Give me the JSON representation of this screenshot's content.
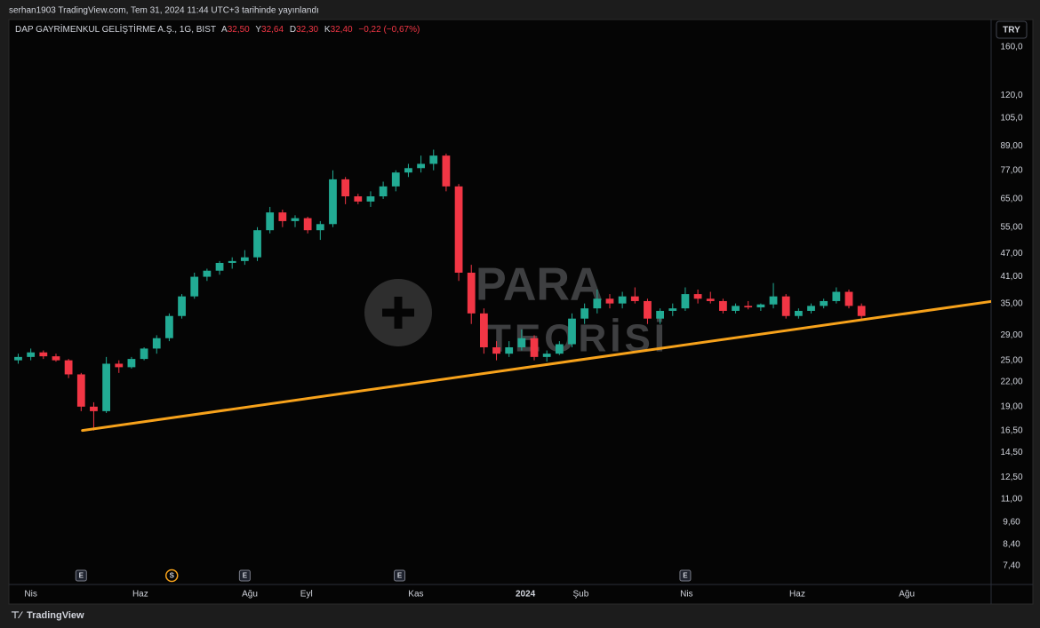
{
  "header": {
    "publisher": "serhan1903 TradingView.com, Tem 31, 2024 11:44 UTC+3 tarihinde yayınlandı"
  },
  "footer": {
    "brand": "TradingView"
  },
  "watermark": {
    "line1": "PARA",
    "line2": "TEORİSİ"
  },
  "chart_data": {
    "type": "candlestick",
    "title": "DAP GAYRİMENKUL GELİŞTİRME A.Ş., 1G, BIST",
    "legend": {
      "open_label": "A",
      "open": "32,50",
      "high_label": "Y",
      "high": "32,64",
      "low_label": "D",
      "low": "32,30",
      "close_label": "K",
      "close": "32,40",
      "change": "−0,22 (−0,67%)"
    },
    "currency": "TRY",
    "up_color": "#22ab94",
    "down_color": "#f23645",
    "log_scale": true,
    "grid": false,
    "x": [
      -1,
      0,
      1,
      2,
      3,
      4,
      5,
      6,
      7,
      8,
      9,
      10,
      11,
      12,
      13,
      14,
      15,
      16,
      17,
      18,
      19,
      20,
      21,
      22,
      23,
      24,
      25,
      26,
      27,
      28,
      29,
      30,
      31,
      32,
      33,
      34,
      35,
      36,
      37,
      38,
      39,
      40,
      41,
      42,
      43,
      44,
      45,
      46,
      47,
      48,
      49,
      50,
      51,
      52,
      53,
      54,
      55,
      56,
      57,
      58,
      59,
      60,
      61,
      62,
      63,
      64,
      65,
      66
    ],
    "open": [
      25,
      25.5,
      26.2,
      25.6,
      25,
      23,
      19,
      18.5,
      24.5,
      24,
      25.2,
      26.8,
      28.5,
      32.5,
      36.5,
      41,
      42.5,
      44.5,
      45,
      46,
      54,
      60,
      57,
      58,
      54,
      56,
      73,
      66,
      64,
      66,
      70,
      76,
      78,
      80,
      84,
      70,
      42,
      33,
      27,
      26,
      27,
      28.5,
      25.5,
      26,
      27.5,
      32,
      34,
      36,
      35,
      36.5,
      35.5,
      32,
      33.5,
      34,
      37,
      36,
      35.5,
      33.5,
      34.5,
      34.2,
      34.8,
      36.5,
      32.5,
      33.5,
      34.5,
      35.5,
      37.5,
      34.5
    ],
    "high": [
      26,
      26.8,
      26.5,
      26,
      25.2,
      23.2,
      19.5,
      25.5,
      25,
      25.5,
      27,
      29,
      33,
      37,
      42,
      43,
      45,
      46,
      48,
      55,
      62,
      61,
      59,
      58.5,
      57,
      77,
      74,
      67,
      68,
      72,
      77,
      80,
      84,
      87,
      85,
      71,
      44,
      34,
      28,
      28,
      30,
      29,
      26.5,
      28,
      33,
      35,
      38,
      37,
      37.5,
      38.5,
      36,
      34,
      35,
      38.5,
      38,
      37.5,
      36,
      35,
      35.5,
      35,
      39.5,
      37,
      34,
      35,
      36,
      38.5,
      38,
      35
    ],
    "low": [
      24.5,
      25,
      25.2,
      24.8,
      22.5,
      18.5,
      16.5,
      18.3,
      23.2,
      23.8,
      25,
      26,
      28,
      32,
      36,
      40,
      41.5,
      43,
      44,
      45,
      53,
      55,
      55,
      53,
      51,
      55,
      63,
      63,
      62,
      65,
      68,
      74,
      76,
      77,
      68,
      40,
      31,
      26,
      25,
      25.5,
      26.5,
      25,
      24.8,
      25.8,
      27,
      31,
      33,
      34,
      34,
      35,
      31,
      31,
      32.5,
      33.5,
      35,
      35,
      33,
      33,
      33.8,
      33.5,
      34,
      32,
      32,
      33,
      34,
      35,
      34,
      32
    ],
    "close": [
      25.5,
      26.2,
      25.6,
      25,
      23,
      19,
      18.5,
      24.5,
      24,
      25.2,
      26.8,
      28.5,
      32.5,
      36.5,
      41,
      42.5,
      44.5,
      45,
      46,
      54,
      60,
      57,
      58,
      54,
      56,
      73,
      66,
      64,
      66,
      70,
      76,
      78,
      80,
      84,
      70,
      42,
      33,
      27,
      26,
      27,
      28.5,
      25.5,
      26,
      27.5,
      32,
      34,
      36,
      35,
      36.5,
      35.5,
      32,
      33.5,
      34,
      37,
      36,
      35.5,
      33.5,
      34.5,
      34.2,
      34.8,
      36.5,
      32.5,
      33.5,
      34.5,
      35.5,
      37.5,
      34.5,
      32.5
    ],
    "xlim": [
      -1.6,
      76.3
    ],
    "xticks": [
      {
        "value": 0,
        "label": "Nis"
      },
      {
        "value": 8.7,
        "label": "Haz"
      },
      {
        "value": 17.4,
        "label": "Ağu"
      },
      {
        "value": 21.9,
        "label": "Eyl"
      },
      {
        "value": 30.6,
        "label": "Kas"
      },
      {
        "value": 39.3,
        "label": "2024"
      },
      {
        "value": 43.7,
        "label": "Şub"
      },
      {
        "value": 52.1,
        "label": "Nis"
      },
      {
        "value": 60.9,
        "label": "Haz"
      },
      {
        "value": 69.6,
        "label": "Ağu"
      }
    ],
    "ylim": [
      6.63,
      188
    ],
    "yticks": [
      {
        "value": 7.4,
        "label": "7,40"
      },
      {
        "value": 8.4,
        "label": "8,40"
      },
      {
        "value": 9.6,
        "label": "9,60"
      },
      {
        "value": 11,
        "label": "11,00"
      },
      {
        "value": 12.5,
        "label": "12,50"
      },
      {
        "value": 14.5,
        "label": "14,50"
      },
      {
        "value": 16.5,
        "label": "16,50"
      },
      {
        "value": 19,
        "label": "19,00"
      },
      {
        "value": 22,
        "label": "22,00"
      },
      {
        "value": 25,
        "label": "25,00"
      },
      {
        "value": 29,
        "label": "29,00"
      },
      {
        "value": 35,
        "label": "35,00"
      },
      {
        "value": 41,
        "label": "41,00"
      },
      {
        "value": 47,
        "label": "47,00"
      },
      {
        "value": 55,
        "label": "55,00"
      },
      {
        "value": 65,
        "label": "65,00"
      },
      {
        "value": 77,
        "label": "77,00"
      },
      {
        "value": 89,
        "label": "89,00"
      },
      {
        "value": 105,
        "label": "105,0"
      },
      {
        "value": 120,
        "label": "120,0"
      },
      {
        "value": 160,
        "label": "160,0"
      }
    ],
    "trendline": {
      "x": [
        4.1,
        76.5
      ],
      "y": [
        16.5,
        35.5
      ],
      "color": "#f7a21b"
    },
    "events": [
      {
        "x": 4.0,
        "label": "E",
        "shape": "box"
      },
      {
        "x": 11.2,
        "label": "S",
        "shape": "circle"
      },
      {
        "x": 17.0,
        "label": "E",
        "shape": "box"
      },
      {
        "x": 29.3,
        "label": "E",
        "shape": "box"
      },
      {
        "x": 52.0,
        "label": "E",
        "shape": "box"
      }
    ]
  }
}
